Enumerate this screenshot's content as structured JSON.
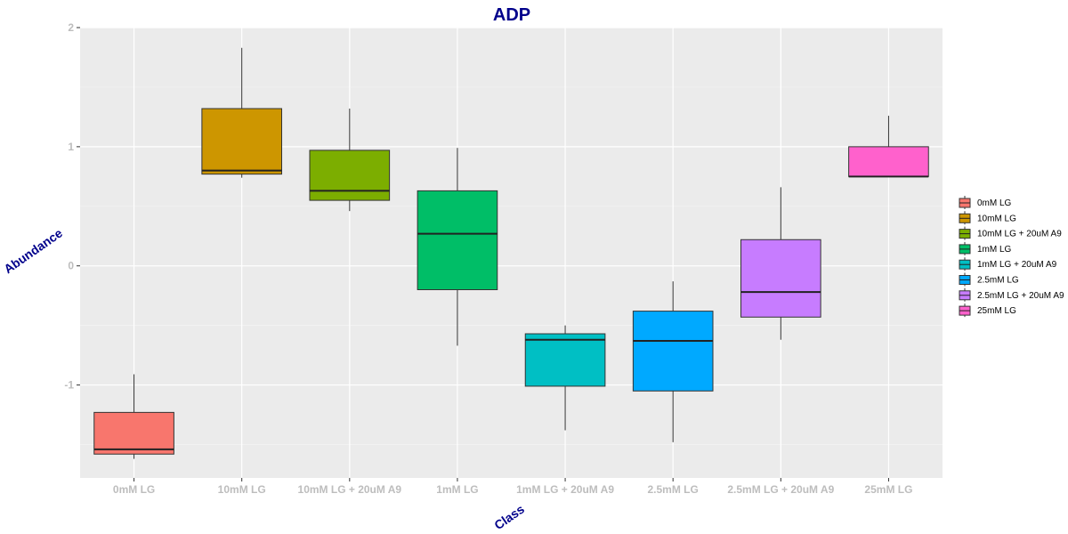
{
  "chart_data": {
    "type": "boxplot",
    "title": "ADP",
    "xlabel": "Class",
    "ylabel": "Abundance",
    "ylim": [
      -1.78,
      2.0
    ],
    "yticks": [
      2,
      1,
      0,
      -1
    ],
    "ytick_labels": [
      "2",
      "1",
      "0",
      "-1"
    ],
    "grid": true,
    "legend_position": "right",
    "categories": [
      "0mM LG",
      "10mM LG",
      "10mM LG + 20uM A9",
      "1mM LG",
      "1mM LG + 20uM A9",
      "2.5mM LG",
      "2.5mM LG + 20uM A9",
      "25mM LG"
    ],
    "boxes": [
      {
        "name": "0mM LG",
        "whisker_low": -1.62,
        "q1": -1.58,
        "median": -1.54,
        "q3": -1.23,
        "whisker_high": -0.91,
        "color": "#F8766D"
      },
      {
        "name": "10mM LG",
        "whisker_low": 0.74,
        "q1": 0.77,
        "median": 0.8,
        "q3": 1.32,
        "whisker_high": 1.83,
        "color": "#CD9600"
      },
      {
        "name": "10mM LG + 20uM A9",
        "whisker_low": 0.46,
        "q1": 0.55,
        "median": 0.63,
        "q3": 0.97,
        "whisker_high": 1.32,
        "color": "#7CAE00"
      },
      {
        "name": "1mM LG",
        "whisker_low": -0.67,
        "q1": -0.2,
        "median": 0.27,
        "q3": 0.63,
        "whisker_high": 0.99,
        "color": "#00BE67"
      },
      {
        "name": "1mM LG + 20uM A9",
        "whisker_low": -1.38,
        "q1": -1.01,
        "median": -0.62,
        "q3": -0.57,
        "whisker_high": -0.5,
        "color": "#00BFC4"
      },
      {
        "name": "2.5mM LG",
        "whisker_low": -1.48,
        "q1": -1.05,
        "median": -0.63,
        "q3": -0.38,
        "whisker_high": -0.13,
        "color": "#00A9FF"
      },
      {
        "name": "2.5mM LG + 20uM A9",
        "whisker_low": -0.62,
        "q1": -0.43,
        "median": -0.22,
        "q3": 0.22,
        "whisker_high": 0.66,
        "color": "#C77CFF"
      },
      {
        "name": "25mM LG",
        "whisker_low": 0.75,
        "q1": 0.75,
        "median": 0.75,
        "q3": 1.0,
        "whisker_high": 1.26,
        "color": "#FF61CC"
      }
    ],
    "legend": [
      {
        "label": "0mM LG",
        "color": "#F8766D"
      },
      {
        "label": "10mM LG",
        "color": "#CD9600"
      },
      {
        "label": "10mM LG + 20uM A9",
        "color": "#7CAE00"
      },
      {
        "label": "1mM LG",
        "color": "#00BE67"
      },
      {
        "label": "1mM LG + 20uM A9",
        "color": "#00BFC4"
      },
      {
        "label": "2.5mM LG",
        "color": "#00A9FF"
      },
      {
        "label": "2.5mM LG + 20uM A9",
        "color": "#C77CFF"
      },
      {
        "label": "25mM LG",
        "color": "#FF61CC"
      }
    ]
  },
  "colors": {
    "panel_background": "#EBEBEB",
    "grid_major": "#FFFFFF",
    "grid_minor": "#F4F4F4",
    "title_text": "#00008B",
    "tick_text": "#BDBDBD"
  }
}
